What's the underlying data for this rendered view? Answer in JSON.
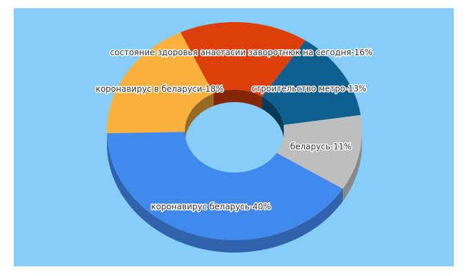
{
  "chart_data": {
    "type": "donut3d",
    "labels": [
      "состояние здоровья анастасии заворотнюк на сегодня-16%",
      "строительство метро-13%",
      "беларусь-11%",
      "коронавирус беларусь-40%",
      "коронавирус в беларуси-18%"
    ],
    "values": [
      16,
      13,
      11,
      40,
      18
    ],
    "colors": [
      "#dd3f0b",
      "#0f5f91",
      "#bebebe",
      "#4289ee",
      "#fbb03f"
    ]
  }
}
